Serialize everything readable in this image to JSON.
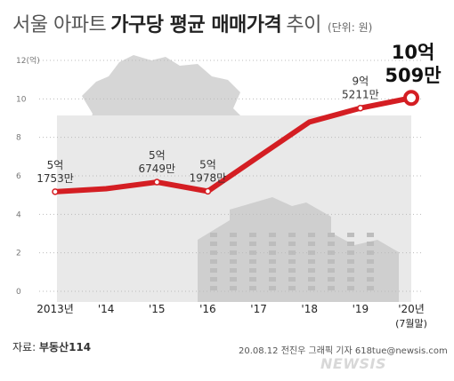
{
  "header": {
    "title_light": "서울 아파트",
    "title_bold": "가구당 평균 매매가격",
    "title_tail": "추이",
    "unit": "(단위: 원)"
  },
  "chart_data": {
    "type": "line",
    "title": "서울 아파트 가구당 평균 매매가격 추이",
    "unit_label": "(단위: 원)",
    "x": [
      "2013년",
      "'14",
      "'15",
      "'16",
      "'17",
      "'18",
      "'19",
      "'20년"
    ],
    "x_sublabel": {
      "index": 7,
      "text": "(7월말)"
    },
    "series": [
      {
        "values": [
          5.1753,
          5.33,
          5.6749,
          5.1978,
          7.0,
          8.8,
          9.5211,
          10.0509
        ]
      }
    ],
    "y_ticks": [
      {
        "value": 12,
        "label": "12(억)"
      },
      {
        "value": 10,
        "label": "10"
      },
      {
        "value": 8,
        "label": "8"
      },
      {
        "value": 6,
        "label": "6"
      },
      {
        "value": 4,
        "label": "4"
      },
      {
        "value": 2,
        "label": "2"
      },
      {
        "value": 0,
        "label": "0"
      }
    ],
    "ylim": [
      0,
      12
    ],
    "grid": true,
    "annotations": [
      {
        "index": 0,
        "line1": "5억",
        "line2": "1753만",
        "emphasis": false
      },
      {
        "index": 2,
        "line1": "5억",
        "line2": "6749만",
        "emphasis": false
      },
      {
        "index": 3,
        "line1": "5억",
        "line2": "1978만",
        "emphasis": false
      },
      {
        "index": 6,
        "line1": "9억",
        "line2": "5211만",
        "emphasis": false
      },
      {
        "index": 7,
        "line1": "10억",
        "line2": "509만",
        "emphasis": true
      }
    ],
    "colors": {
      "line": "#d41e23",
      "marker_fill": "#ffffff",
      "area": "#c9c9c9",
      "grid": "#bbbbbb",
      "axis_text": "#777777"
    }
  },
  "footer": {
    "source_label": "자료:",
    "source_name": "부동산114",
    "credit": "20.08.12 전진우 그래픽 기자 618tue@newsis.com",
    "watermark": "NEWSIS"
  }
}
